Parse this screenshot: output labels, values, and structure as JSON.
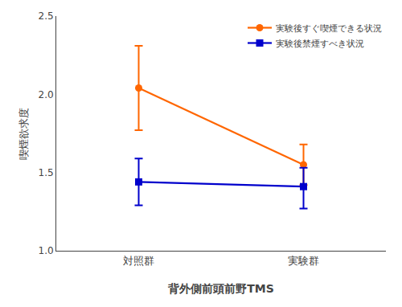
{
  "chart_data": {
    "type": "line",
    "xlabel": "背外側前頭前野TMS",
    "ylabel": "喫煙欲求度",
    "categories": [
      "対照群",
      "実験群"
    ],
    "series": [
      {
        "name": "実験後すぐ喫煙できる状況",
        "color": "#FF6600",
        "marker": "circle",
        "line_style": "solid",
        "values": [
          2.04,
          1.55
        ],
        "error_upper": [
          0.27,
          0.13
        ],
        "error_lower": [
          0.27,
          0.13
        ]
      },
      {
        "name": "実験後禁煙すべき状況",
        "color": "#0000CC",
        "marker": "square",
        "line_style": "solid",
        "values": [
          1.44,
          1.41
        ],
        "error_upper": [
          0.15,
          0.12
        ],
        "error_lower": [
          0.15,
          0.14
        ]
      }
    ],
    "ylim": [
      1.0,
      2.5
    ],
    "yticks": [
      {
        "value": 1.0,
        "label": "1.0"
      },
      1.5,
      {
        "value": 2.0,
        "label": "2.0"
      },
      2.5
    ],
    "grid": false,
    "legend": "upper right"
  }
}
